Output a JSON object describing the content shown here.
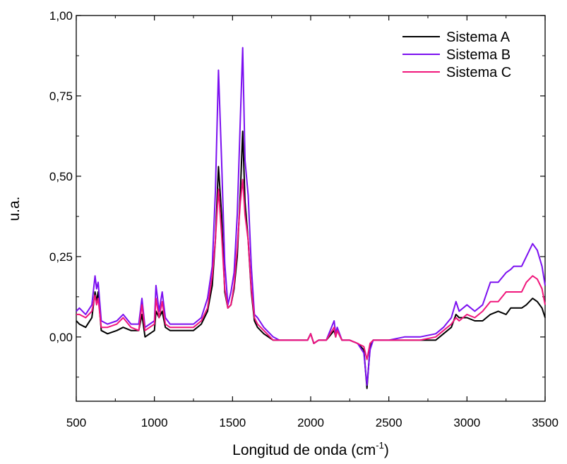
{
  "chart_data": {
    "type": "line",
    "title": "",
    "xlabel": "Longitud de onda (cm",
    "xlabel_sup": "-1",
    "xlabel_suffix": ")",
    "ylabel": "u.a.",
    "xlim": [
      500,
      3500
    ],
    "ylim": [
      -0.2,
      1.0
    ],
    "x_ticks": [
      500,
      1000,
      1500,
      2000,
      2500,
      3000,
      3500
    ],
    "x_tick_labels": [
      "500",
      "1000",
      "1500",
      "2000",
      "2500",
      "3000",
      "3500"
    ],
    "y_ticks": [
      0.0,
      0.25,
      0.5,
      0.75,
      1.0
    ],
    "y_tick_labels": [
      "0,00",
      "0,25",
      "0,50",
      "0,75",
      "1,00"
    ],
    "grid": false,
    "legend_position": "top-right",
    "x": [
      500,
      520,
      560,
      600,
      620,
      630,
      640,
      660,
      700,
      760,
      800,
      850,
      900,
      920,
      940,
      1000,
      1010,
      1030,
      1050,
      1070,
      1100,
      1200,
      1250,
      1300,
      1340,
      1370,
      1390,
      1410,
      1430,
      1450,
      1470,
      1490,
      1510,
      1530,
      1550,
      1565,
      1580,
      1600,
      1620,
      1640,
      1660,
      1700,
      1760,
      1800,
      1900,
      1980,
      2000,
      2020,
      2050,
      2100,
      2150,
      2160,
      2170,
      2200,
      2250,
      2300,
      2340,
      2360,
      2380,
      2400,
      2500,
      2600,
      2700,
      2800,
      2850,
      2900,
      2930,
      2950,
      3000,
      3050,
      3100,
      3150,
      3200,
      3250,
      3280,
      3300,
      3350,
      3380,
      3420,
      3450,
      3480,
      3500
    ],
    "series": [
      {
        "name": "Sistema A",
        "color": "#000000",
        "values": [
          0.05,
          0.04,
          0.03,
          0.06,
          0.14,
          0.11,
          0.14,
          0.02,
          0.01,
          0.02,
          0.03,
          0.02,
          0.02,
          0.07,
          0.0,
          0.02,
          0.08,
          0.06,
          0.08,
          0.03,
          0.02,
          0.02,
          0.02,
          0.04,
          0.08,
          0.16,
          0.3,
          0.53,
          0.38,
          0.14,
          0.09,
          0.1,
          0.15,
          0.25,
          0.45,
          0.64,
          0.42,
          0.3,
          0.14,
          0.05,
          0.03,
          0.01,
          -0.01,
          -0.01,
          -0.01,
          -0.01,
          0.01,
          -0.02,
          -0.01,
          -0.01,
          0.02,
          0.0,
          0.02,
          -0.01,
          -0.01,
          -0.02,
          -0.04,
          -0.16,
          -0.03,
          -0.01,
          -0.01,
          -0.01,
          -0.01,
          -0.01,
          0.01,
          0.03,
          0.07,
          0.06,
          0.06,
          0.05,
          0.05,
          0.07,
          0.08,
          0.07,
          0.09,
          0.09,
          0.09,
          0.1,
          0.12,
          0.11,
          0.09,
          0.06
        ]
      },
      {
        "name": "Sistema B",
        "color": "#7b0ff0",
        "values": [
          0.08,
          0.09,
          0.07,
          0.1,
          0.19,
          0.15,
          0.17,
          0.05,
          0.04,
          0.05,
          0.07,
          0.04,
          0.04,
          0.12,
          0.03,
          0.05,
          0.16,
          0.08,
          0.14,
          0.06,
          0.04,
          0.04,
          0.04,
          0.06,
          0.12,
          0.22,
          0.45,
          0.83,
          0.55,
          0.23,
          0.1,
          0.14,
          0.2,
          0.38,
          0.68,
          0.9,
          0.55,
          0.44,
          0.22,
          0.07,
          0.06,
          0.03,
          0.0,
          -0.01,
          -0.01,
          -0.01,
          0.01,
          -0.02,
          -0.01,
          -0.01,
          0.05,
          0.01,
          0.03,
          -0.01,
          -0.01,
          -0.02,
          -0.05,
          -0.15,
          -0.04,
          -0.01,
          -0.01,
          0.0,
          0.0,
          0.01,
          0.03,
          0.06,
          0.11,
          0.08,
          0.1,
          0.08,
          0.1,
          0.17,
          0.17,
          0.2,
          0.21,
          0.22,
          0.22,
          0.25,
          0.29,
          0.27,
          0.22,
          0.16
        ]
      },
      {
        "name": "Sistema C",
        "color": "#f0167b",
        "values": [
          0.07,
          0.07,
          0.06,
          0.08,
          0.13,
          0.1,
          0.12,
          0.03,
          0.03,
          0.04,
          0.06,
          0.03,
          0.02,
          0.1,
          0.02,
          0.04,
          0.12,
          0.06,
          0.11,
          0.04,
          0.03,
          0.03,
          0.03,
          0.05,
          0.09,
          0.19,
          0.3,
          0.46,
          0.32,
          0.15,
          0.09,
          0.1,
          0.16,
          0.28,
          0.42,
          0.49,
          0.38,
          0.3,
          0.15,
          0.06,
          0.04,
          0.02,
          -0.01,
          -0.01,
          -0.01,
          -0.01,
          0.01,
          -0.02,
          -0.01,
          -0.01,
          0.03,
          0.0,
          0.02,
          -0.01,
          -0.01,
          -0.02,
          -0.03,
          -0.07,
          -0.02,
          -0.01,
          -0.01,
          -0.01,
          -0.01,
          0.0,
          0.02,
          0.04,
          0.06,
          0.05,
          0.07,
          0.06,
          0.08,
          0.11,
          0.11,
          0.14,
          0.14,
          0.14,
          0.14,
          0.17,
          0.19,
          0.18,
          0.15,
          0.1
        ]
      }
    ]
  }
}
